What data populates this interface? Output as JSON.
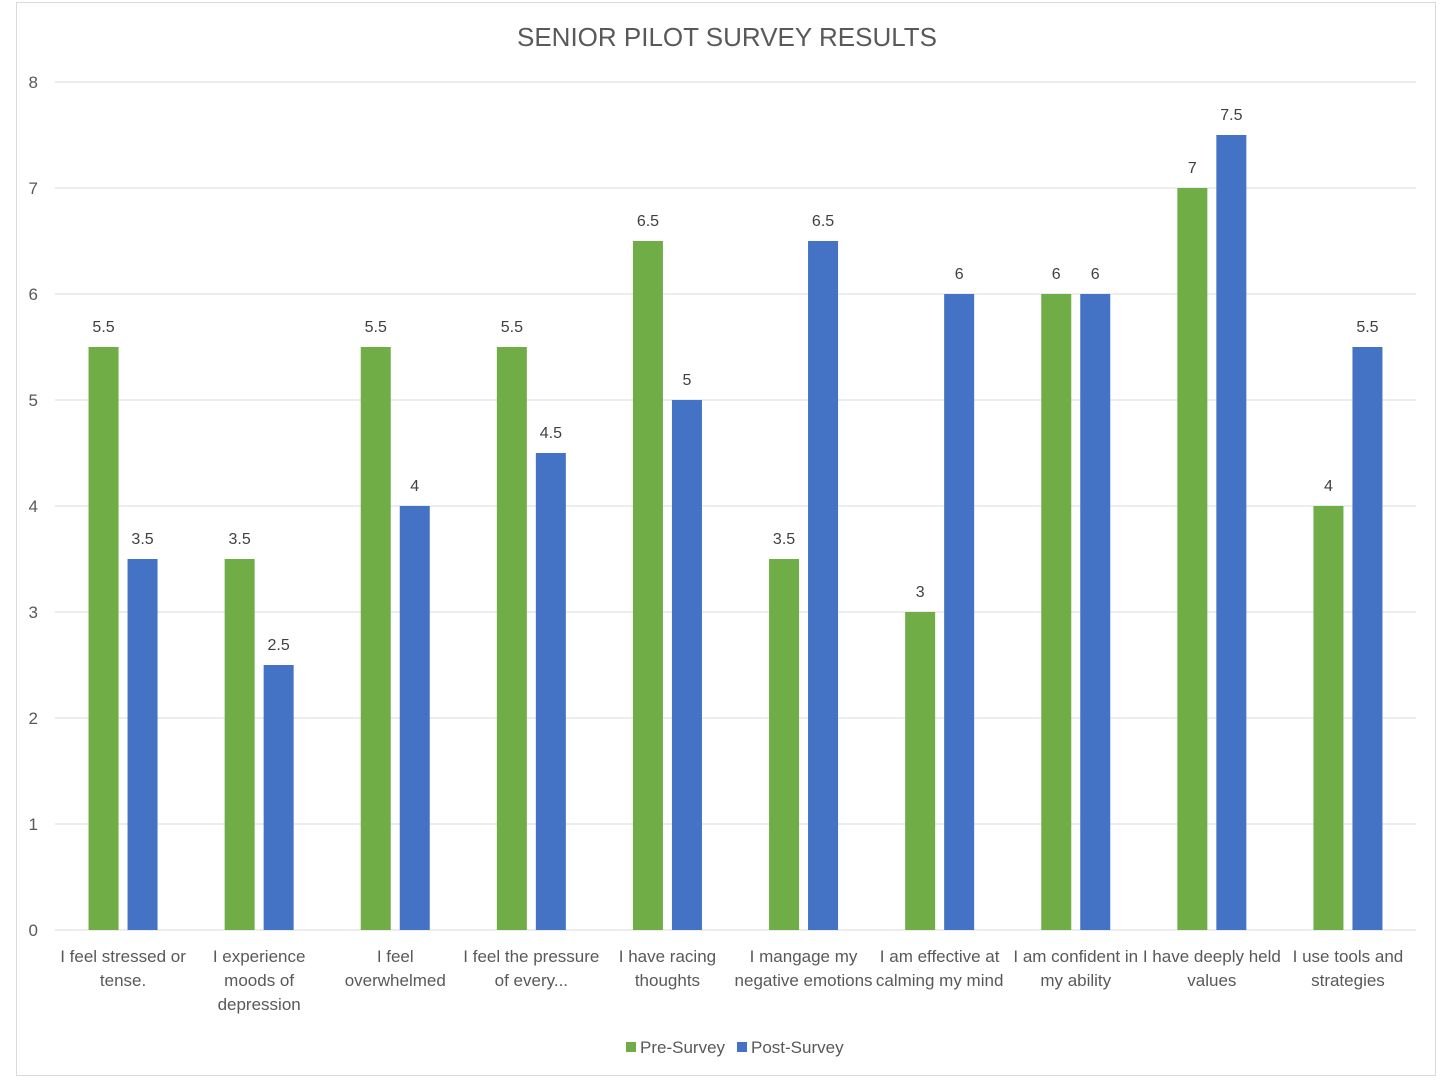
{
  "chart_data": {
    "type": "bar",
    "title": "SENIOR PILOT SURVEY RESULTS",
    "xlabel": "",
    "ylabel": "",
    "ylim": [
      0,
      8
    ],
    "yticks": [
      "0",
      "1",
      "2",
      "3",
      "4",
      "5",
      "6",
      "7",
      "8"
    ],
    "grid": true,
    "legend_position": "bottom",
    "categories": [
      [
        "I feel stressed or",
        "tense."
      ],
      [
        "I experience",
        "moods of",
        "depression"
      ],
      [
        "I feel",
        "overwhelmed"
      ],
      [
        "I feel the pressure",
        "of every..."
      ],
      [
        "I have racing",
        "thoughts"
      ],
      [
        "I mangage my",
        "negative emotions"
      ],
      [
        "I am effective at",
        "calming my mind"
      ],
      [
        "I am confident in",
        "my ability"
      ],
      [
        "I have deeply held",
        "values"
      ],
      [
        "I use tools and",
        "strategies"
      ]
    ],
    "series": [
      {
        "name": "Pre-Survey",
        "color": "#70ad47",
        "values": [
          5.5,
          3.5,
          5.5,
          5.5,
          6.5,
          3.5,
          3,
          6,
          7,
          4
        ],
        "labels": [
          "5.5",
          "3.5",
          "5.5",
          "5.5",
          "6.5",
          "3.5",
          "3",
          "6",
          "7",
          "4"
        ]
      },
      {
        "name": "Post-Survey",
        "color": "#4472c4",
        "values": [
          3.5,
          2.5,
          4,
          4.5,
          5,
          6.5,
          6,
          6,
          7.5,
          5.5
        ],
        "labels": [
          "3.5",
          "2.5",
          "4",
          "4.5",
          "5",
          "6.5",
          "6",
          "6",
          "7.5",
          "5.5"
        ]
      }
    ]
  }
}
